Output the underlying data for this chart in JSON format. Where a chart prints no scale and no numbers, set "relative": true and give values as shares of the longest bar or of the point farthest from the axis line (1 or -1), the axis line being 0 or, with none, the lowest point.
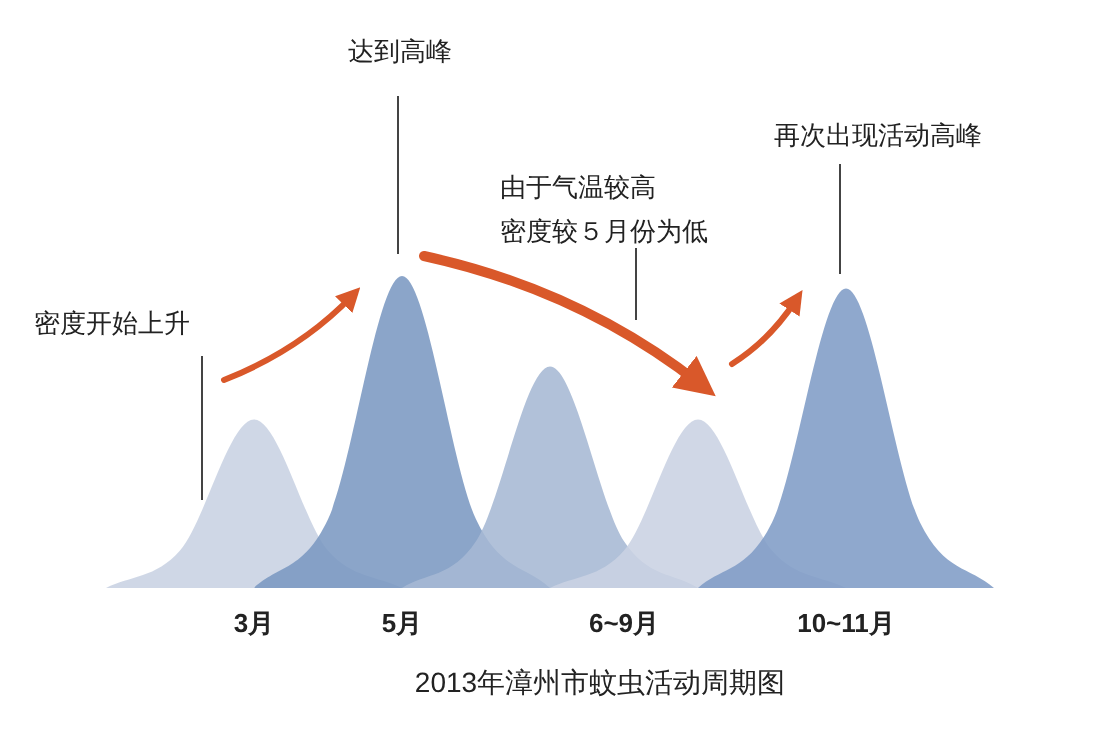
{
  "chart_data": {
    "type": "area",
    "relative": true,
    "categories": [
      null,
      null,
      "3月",
      null,
      "5月",
      null,
      null,
      "6~9月",
      null,
      null,
      "10~11月",
      null,
      null
    ],
    "series": [
      {
        "color": "#c8d1e2",
        "values": [
          0,
          0.12,
          0.54,
          0.12,
          0,
          null,
          null,
          null,
          null,
          null,
          null,
          null,
          null
        ]
      },
      {
        "color": "#7b98c2",
        "values": [
          null,
          null,
          0,
          0.22,
          1,
          0.22,
          0,
          null,
          null,
          null,
          null,
          null,
          null
        ]
      },
      {
        "color": "#a6b8d4",
        "values": [
          null,
          null,
          null,
          null,
          0,
          0.15,
          0.71,
          0.15,
          0,
          null,
          null,
          null,
          null
        ]
      },
      {
        "color": "#c9d2e3",
        "values": [
          null,
          null,
          null,
          null,
          null,
          null,
          0,
          0.12,
          0.54,
          0.12,
          0,
          null,
          null
        ]
      },
      {
        "color": "#7f9cc6",
        "values": [
          null,
          null,
          null,
          null,
          null,
          null,
          null,
          null,
          0,
          0.21,
          0.96,
          0.21,
          0
        ]
      }
    ],
    "annotations": [
      "密度开始上升",
      "达到高峰",
      "由于气温较高密度较５月份为低",
      "再次出现活动高峰",
      "2013年漳州市蚊虫活动周期图"
    ]
  }
}
